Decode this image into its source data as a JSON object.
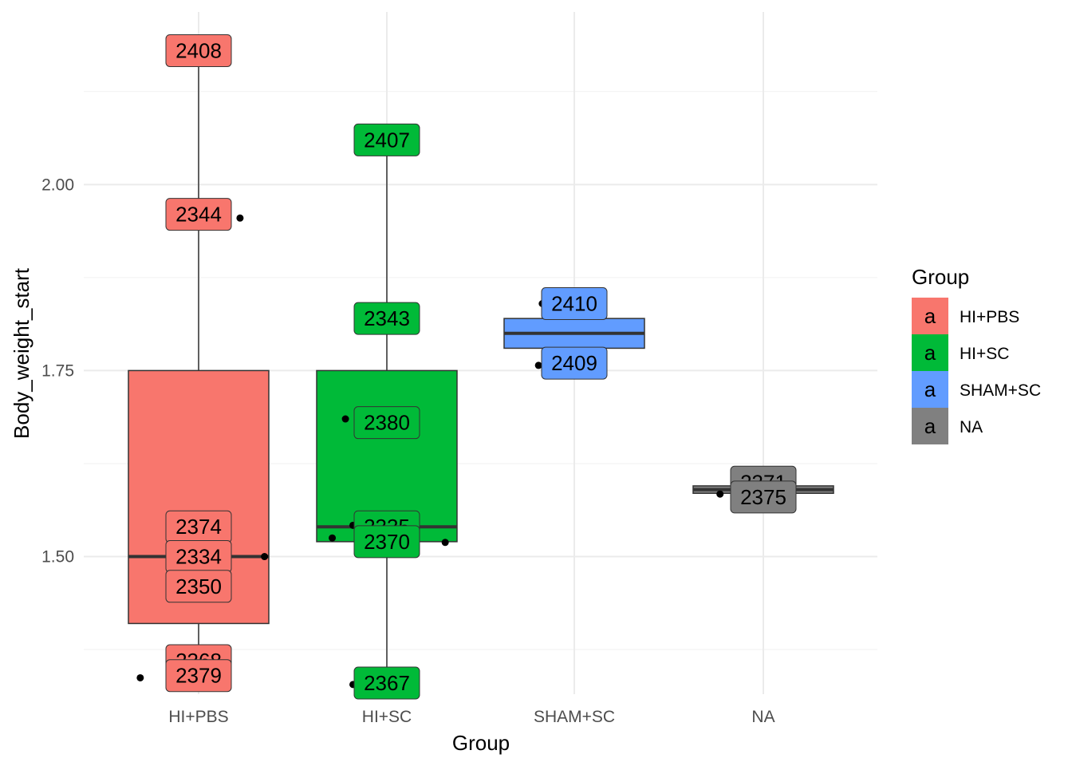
{
  "chart_data": {
    "type": "box",
    "xlabel": "Group",
    "ylabel": "Body_weight_start",
    "ylim": [
      1.315,
      2.232
    ],
    "yticks": [
      "1.50",
      "1.75",
      "2.00"
    ],
    "ytick_values": [
      1.5,
      1.75,
      2.0
    ],
    "yminor": [
      1.375,
      1.625,
      1.875,
      2.125
    ],
    "grid": true,
    "categories": [
      "HI+PBS",
      "HI+SC",
      "SHAM+SC",
      "NA"
    ],
    "boxes": [
      {
        "group": "HI+PBS",
        "color": "#F8766D",
        "min": 1.34,
        "q1": 1.41,
        "median": 1.5,
        "q3": 1.75,
        "max": 2.18
      },
      {
        "group": "HI+SC",
        "color": "#00BA38",
        "min": 1.33,
        "q1": 1.52,
        "median": 1.54,
        "q3": 1.75,
        "max": 2.06
      },
      {
        "group": "SHAM+SC",
        "color": "#619CFF",
        "min": 1.78,
        "q1": 1.78,
        "median": 1.8,
        "q3": 1.82,
        "max": 1.82
      },
      {
        "group": "NA",
        "color": "#808080",
        "min": 1.585,
        "q1": 1.585,
        "median": 1.59,
        "q3": 1.595,
        "max": 1.595
      }
    ],
    "points": [
      {
        "group": "HI+PBS",
        "dx": -0.31,
        "y": 1.337
      },
      {
        "group": "HI+PBS",
        "dx": 0.22,
        "y": 1.955
      },
      {
        "group": "HI+PBS",
        "dx": 0.35,
        "y": 1.5
      },
      {
        "group": "HI+SC",
        "dx": -0.22,
        "y": 1.685
      },
      {
        "group": "HI+SC",
        "dx": -0.29,
        "y": 1.525
      },
      {
        "group": "HI+SC",
        "dx": -0.18,
        "y": 1.542
      },
      {
        "group": "HI+SC",
        "dx": 0.31,
        "y": 1.519
      },
      {
        "group": "HI+SC",
        "dx": -0.18,
        "y": 1.328
      },
      {
        "group": "SHAM+SC",
        "dx": -0.17,
        "y": 1.84
      },
      {
        "group": "SHAM+SC",
        "dx": -0.19,
        "y": 1.757
      },
      {
        "group": "NA",
        "dx": -0.23,
        "y": 1.584
      }
    ],
    "labels": [
      {
        "group": "HI+PBS",
        "text": "2408",
        "y": 2.18
      },
      {
        "group": "HI+PBS",
        "text": "2344",
        "y": 1.96
      },
      {
        "group": "HI+PBS",
        "text": "2374",
        "y": 1.54
      },
      {
        "group": "HI+PBS",
        "text": "2334",
        "y": 1.5
      },
      {
        "group": "HI+PBS",
        "text": "2350",
        "y": 1.46
      },
      {
        "group": "HI+PBS",
        "text": "2368",
        "y": 1.36
      },
      {
        "group": "HI+PBS",
        "text": "2379",
        "y": 1.34
      },
      {
        "group": "HI+SC",
        "text": "2407",
        "y": 2.06
      },
      {
        "group": "HI+SC",
        "text": "2343",
        "y": 1.82
      },
      {
        "group": "HI+SC",
        "text": "2380",
        "y": 1.68
      },
      {
        "group": "HI+SC",
        "text": "2335",
        "y": 1.54
      },
      {
        "group": "HI+SC",
        "text": "2370",
        "y": 1.52
      },
      {
        "group": "HI+SC",
        "text": "2367",
        "y": 1.33
      },
      {
        "group": "SHAM+SC",
        "text": "2410",
        "y": 1.84
      },
      {
        "group": "SHAM+SC",
        "text": "2409",
        "y": 1.76
      },
      {
        "group": "NA",
        "text": "2371",
        "y": 1.6
      },
      {
        "group": "NA",
        "text": "2375",
        "y": 1.58
      }
    ],
    "legend": {
      "title": "Group",
      "key_glyph": "a",
      "position": "right",
      "entries": [
        {
          "label": "HI+PBS",
          "color": "#F8766D"
        },
        {
          "label": "HI+SC",
          "color": "#00BA38"
        },
        {
          "label": "SHAM+SC",
          "color": "#619CFF"
        },
        {
          "label": "NA",
          "color": "#808080"
        }
      ]
    }
  }
}
